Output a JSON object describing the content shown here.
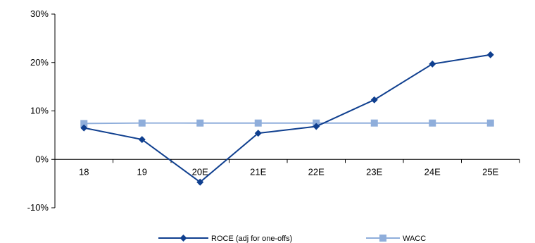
{
  "chart_data": {
    "type": "line",
    "title": "",
    "xlabel": "",
    "ylabel": "",
    "categories": [
      "18",
      "19",
      "20E",
      "21E",
      "22E",
      "23E",
      "24E",
      "25E"
    ],
    "ylim": [
      -10,
      30
    ],
    "yticks": [
      -10,
      0,
      10,
      20,
      30
    ],
    "ytick_labels": [
      "-10%",
      "0%",
      "10%",
      "20%",
      "30%"
    ],
    "grid": false,
    "legend_position": "bottom",
    "series": [
      {
        "name": "ROCE (adj for one-offs)",
        "values": [
          6.5,
          4.1,
          -4.7,
          5.4,
          6.8,
          12.3,
          19.7,
          21.6
        ],
        "color": "#0F3F8F",
        "marker": "diamond"
      },
      {
        "name": "WACC",
        "values": [
          7.4,
          7.5,
          7.5,
          7.5,
          7.5,
          7.5,
          7.5,
          7.5
        ],
        "color": "#8FAEDB",
        "marker": "square"
      }
    ]
  }
}
